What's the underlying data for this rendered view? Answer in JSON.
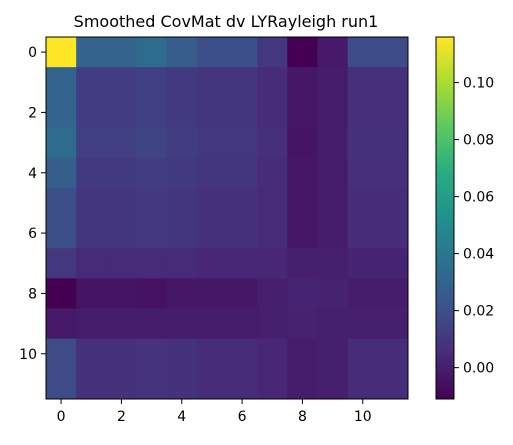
{
  "chart_data": {
    "type": "heatmap",
    "title": "Smoothed CovMat dv LYRayleigh run1",
    "xlabel": "",
    "ylabel": "",
    "x_ticks": [
      0,
      2,
      4,
      6,
      8,
      10
    ],
    "y_ticks": [
      0,
      2,
      4,
      6,
      8,
      10
    ],
    "x_tick_labels": [
      "0",
      "2",
      "4",
      "6",
      "8",
      "10"
    ],
    "y_tick_labels": [
      "0",
      "2",
      "4",
      "6",
      "8",
      "10"
    ],
    "colormap": "viridis",
    "vmin": -0.011,
    "vmax": 0.116,
    "colorbar_ticks": [
      0.0,
      0.02,
      0.04,
      0.06,
      0.08,
      0.1
    ],
    "colorbar_tick_labels": [
      "0.00",
      "0.02",
      "0.04",
      "0.06",
      "0.08",
      "0.10"
    ],
    "matrix": [
      [
        0.116,
        0.03,
        0.03,
        0.034,
        0.027,
        0.02,
        0.02,
        0.01,
        -0.011,
        -0.002,
        0.018,
        0.018
      ],
      [
        0.03,
        0.012,
        0.012,
        0.013,
        0.011,
        0.009,
        0.009,
        0.005,
        -0.003,
        -0.001,
        0.006,
        0.006
      ],
      [
        0.03,
        0.012,
        0.012,
        0.013,
        0.011,
        0.009,
        0.009,
        0.005,
        -0.003,
        -0.001,
        0.006,
        0.006
      ],
      [
        0.034,
        0.013,
        0.013,
        0.015,
        0.012,
        0.01,
        0.01,
        0.006,
        -0.004,
        -0.001,
        0.007,
        0.007
      ],
      [
        0.027,
        0.011,
        0.011,
        0.012,
        0.011,
        0.009,
        0.009,
        0.005,
        -0.003,
        -0.001,
        0.006,
        0.006
      ],
      [
        0.02,
        0.009,
        0.009,
        0.01,
        0.009,
        0.007,
        0.007,
        0.004,
        -0.003,
        -0.001,
        0.005,
        0.005
      ],
      [
        0.02,
        0.009,
        0.009,
        0.01,
        0.009,
        0.007,
        0.007,
        0.004,
        -0.003,
        -0.001,
        0.005,
        0.005
      ],
      [
        0.01,
        0.004,
        0.004,
        0.004,
        0.004,
        0.003,
        0.003,
        0.003,
        0.0,
        0.0,
        0.002,
        0.002
      ],
      [
        -0.011,
        -0.004,
        -0.004,
        -0.005,
        -0.003,
        -0.003,
        -0.003,
        0.0,
        0.002,
        0.001,
        -0.001,
        -0.001
      ],
      [
        -0.002,
        -0.001,
        -0.001,
        -0.001,
        -0.001,
        -0.001,
        -0.001,
        0.0,
        0.001,
        0.0,
        0.0,
        0.0
      ],
      [
        0.018,
        0.007,
        0.007,
        0.008,
        0.007,
        0.005,
        0.005,
        0.003,
        -0.001,
        0.0,
        0.005,
        0.005
      ],
      [
        0.018,
        0.007,
        0.007,
        0.008,
        0.007,
        0.005,
        0.005,
        0.003,
        -0.001,
        0.0,
        0.005,
        0.005
      ]
    ]
  }
}
